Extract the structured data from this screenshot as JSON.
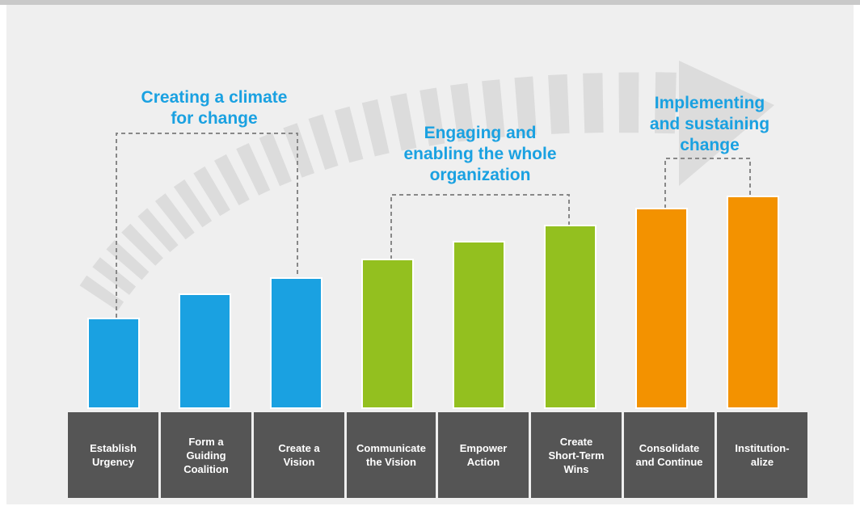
{
  "groups": [
    {
      "title": "Creating a climate\nfor change",
      "color": "#1aa1e1"
    },
    {
      "title": "Engaging and\nenabling the whole\norganization",
      "color": "#93c01f"
    },
    {
      "title": "Implementing\nand sustaining\nchange",
      "color": "#f39200"
    }
  ],
  "steps": [
    {
      "label": "Establish\nUrgency",
      "group": 0,
      "level": 1
    },
    {
      "label": "Form a\nGuiding\nCoalition",
      "group": 0,
      "level": 2
    },
    {
      "label": "Create a\nVision",
      "group": 0,
      "level": 3
    },
    {
      "label": "Communicate\nthe Vision",
      "group": 1,
      "level": 4
    },
    {
      "label": "Empower\nAction",
      "group": 1,
      "level": 5
    },
    {
      "label": "Create\nShort-Term\nWins",
      "group": 1,
      "level": 6
    },
    {
      "label": "Consolidate\nand Continue",
      "group": 2,
      "level": 7
    },
    {
      "label": "Institution-\nalize",
      "group": 2,
      "level": 8
    }
  ],
  "colors": {
    "label_box": "#555555",
    "arrow": "#dcdcdc",
    "bracket": "#888888",
    "background": "#efefef"
  },
  "icons": {
    "progress_arrow": "curved-dashed-arrow-icon"
  }
}
